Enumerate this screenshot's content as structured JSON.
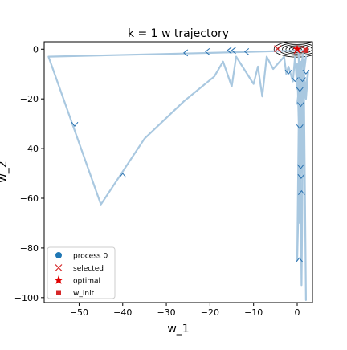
{
  "chart_data": {
    "type": "line",
    "title": "k = 1 w trajectory",
    "xlabel": "w_1",
    "ylabel": "w_2",
    "xlim": [
      -58,
      3.5
    ],
    "ylim": [
      -102,
      3
    ],
    "xticks": [
      -50,
      -40,
      -30,
      -20,
      -10,
      0
    ],
    "xtick_labels": [
      "−50",
      "−40",
      "−30",
      "−20",
      "−10",
      "0"
    ],
    "yticks": [
      0,
      -20,
      -40,
      -60,
      -80,
      -100
    ],
    "ytick_labels": [
      "0",
      "−20",
      "−40",
      "−60",
      "−80",
      "−100"
    ],
    "grid": false,
    "legend_position": "lower-left",
    "colors": {
      "trajectory": "#a9c8e0",
      "arrow": "#2a72b0",
      "process": "#1f77b4",
      "selected": "#d62728",
      "optimal": "#e00000",
      "contour": "#000000"
    },
    "legend": [
      {
        "label": "process 0",
        "marker": "circle"
      },
      {
        "label": "selected",
        "marker": "x"
      },
      {
        "label": "optimal",
        "marker": "star"
      },
      {
        "label": "w_init",
        "marker": "square"
      }
    ],
    "series": [
      {
        "x": [
          2,
          -20,
          -57,
          -45,
          -35,
          -26,
          -19,
          -17,
          -15,
          -14,
          -10,
          -9,
          -8,
          -7,
          -5.5,
          -3,
          -2.5,
          -2,
          -1,
          -0.5,
          0,
          0.5,
          1,
          1.5,
          0.7,
          0.8,
          1.2,
          0,
          0.8,
          0.9,
          0.6,
          1,
          0,
          0.5,
          1,
          1.5,
          2,
          1.5,
          2,
          2.5,
          0.7,
          1.5,
          0.5,
          2,
          0,
          1.3,
          0.5,
          0.3,
          0.6
        ],
        "y": [
          -0.5,
          -1.5,
          -3,
          -62.5,
          -36,
          -21,
          -11,
          -5,
          -15,
          -3,
          -14,
          -7,
          -19,
          -3,
          -8,
          -3,
          -10,
          -7,
          -13,
          -3,
          -16,
          -3,
          -20,
          -4,
          -40,
          -8,
          -50,
          -6,
          -60,
          -5,
          -70,
          -12,
          -85,
          -4,
          -95,
          -5,
          -101,
          -8,
          -20,
          -9,
          -30,
          -5,
          -25,
          -3,
          -22,
          -2,
          -13,
          -1,
          -1
        ]
      }
    ],
    "arrow_positions": [
      {
        "x": -26,
        "y": -1.5,
        "direction": "left"
      },
      {
        "x": -21,
        "y": -1,
        "direction": "left"
      },
      {
        "x": -16,
        "y": -0.5,
        "direction": "left"
      },
      {
        "x": -15,
        "y": -0.5,
        "direction": "left"
      },
      {
        "x": -12,
        "y": -1,
        "direction": "left"
      },
      {
        "x": -51,
        "y": -31,
        "direction": "down"
      },
      {
        "x": -40,
        "y": -50,
        "direction": "up"
      },
      {
        "x": -2,
        "y": -10,
        "direction": "down"
      },
      {
        "x": -0.5,
        "y": -13,
        "direction": "down"
      },
      {
        "x": 1.2,
        "y": -13,
        "direction": "down"
      },
      {
        "x": 2,
        "y": -10,
        "direction": "down"
      },
      {
        "x": 0.6,
        "y": -17,
        "direction": "down"
      },
      {
        "x": 0.8,
        "y": -23,
        "direction": "down"
      },
      {
        "x": 0.6,
        "y": -32,
        "direction": "down"
      },
      {
        "x": 0.8,
        "y": -48,
        "direction": "down"
      },
      {
        "x": 0.9,
        "y": -52,
        "direction": "down"
      },
      {
        "x": 1,
        "y": -57,
        "direction": "up"
      },
      {
        "x": 0.5,
        "y": -84,
        "direction": "up"
      }
    ],
    "w_init": {
      "x": 2,
      "y": -0.5
    },
    "selected": [
      {
        "x": -4.5,
        "y": 0.2
      },
      {
        "x": 0,
        "y": -0.5
      },
      {
        "x": 1.8,
        "y": 0
      }
    ],
    "optimal": {
      "x": 0,
      "y": 0
    },
    "contour_center": {
      "x": 0,
      "y": 0
    }
  }
}
